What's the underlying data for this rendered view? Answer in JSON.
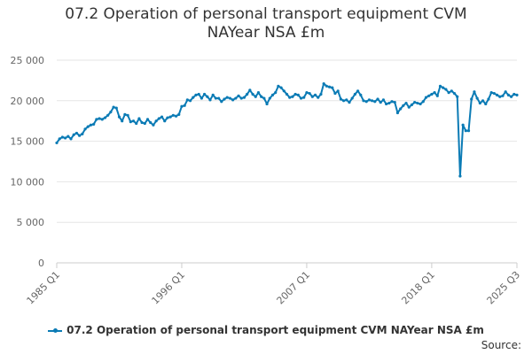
{
  "chart_data": {
    "type": "line",
    "title": "07.2 Operation of personal transport equipment CVM NAYear NSA £m",
    "title_lines": [
      "07.2 Operation of personal transport equipment CVM",
      "NAYear NSA £m"
    ],
    "xlabel": "",
    "ylabel": "",
    "ylim": [
      0,
      25000
    ],
    "y_ticks": [
      0,
      5000,
      10000,
      15000,
      20000,
      25000
    ],
    "y_tick_labels": [
      "0",
      "5 000",
      "10 000",
      "15 000",
      "20 000",
      "25 000"
    ],
    "x_tick_labels": [
      "1985 Q1",
      "1996 Q1",
      "2007 Q1",
      "2018 Q1",
      "2025 Q3"
    ],
    "x_tick_index": [
      0,
      44,
      88,
      132,
      162
    ],
    "grid": true,
    "legend_position": "bottom",
    "series": [
      {
        "name": "07.2 Operation of personal transport equipment CVM NAYear NSA £m",
        "color": "#0b7bb5",
        "anchors": [
          [
            0,
            14800
          ],
          [
            1,
            15300
          ],
          [
            2,
            15500
          ],
          [
            3,
            15400
          ],
          [
            4,
            15600
          ],
          [
            5,
            15300
          ],
          [
            6,
            15800
          ],
          [
            7,
            16000
          ],
          [
            8,
            15700
          ],
          [
            9,
            15900
          ],
          [
            10,
            16500
          ],
          [
            11,
            16800
          ],
          [
            12,
            17000
          ],
          [
            13,
            17100
          ],
          [
            14,
            17700
          ],
          [
            15,
            17800
          ],
          [
            16,
            17700
          ],
          [
            17,
            17900
          ],
          [
            18,
            18200
          ],
          [
            19,
            18600
          ],
          [
            20,
            19200
          ],
          [
            21,
            19100
          ],
          [
            22,
            18000
          ],
          [
            23,
            17500
          ],
          [
            24,
            18300
          ],
          [
            25,
            18200
          ],
          [
            26,
            17400
          ],
          [
            27,
            17500
          ],
          [
            28,
            17200
          ],
          [
            29,
            17800
          ],
          [
            30,
            17300
          ],
          [
            31,
            17200
          ],
          [
            32,
            17700
          ],
          [
            33,
            17300
          ],
          [
            34,
            17000
          ],
          [
            35,
            17500
          ],
          [
            36,
            17800
          ],
          [
            37,
            18000
          ],
          [
            38,
            17500
          ],
          [
            39,
            17900
          ],
          [
            40,
            18000
          ],
          [
            41,
            18200
          ],
          [
            42,
            18100
          ],
          [
            43,
            18300
          ],
          [
            44,
            19300
          ],
          [
            45,
            19400
          ],
          [
            46,
            20100
          ],
          [
            47,
            20000
          ],
          [
            48,
            20400
          ],
          [
            49,
            20700
          ],
          [
            50,
            20800
          ],
          [
            51,
            20300
          ],
          [
            52,
            20800
          ],
          [
            53,
            20500
          ],
          [
            54,
            20100
          ],
          [
            55,
            20700
          ],
          [
            56,
            20300
          ],
          [
            57,
            20300
          ],
          [
            58,
            19900
          ],
          [
            59,
            20200
          ],
          [
            60,
            20400
          ],
          [
            61,
            20300
          ],
          [
            62,
            20100
          ],
          [
            63,
            20300
          ],
          [
            64,
            20600
          ],
          [
            65,
            20300
          ],
          [
            66,
            20400
          ],
          [
            67,
            20800
          ],
          [
            68,
            21300
          ],
          [
            69,
            20800
          ],
          [
            70,
            20500
          ],
          [
            71,
            21000
          ],
          [
            72,
            20500
          ],
          [
            73,
            20300
          ],
          [
            74,
            19600
          ],
          [
            75,
            20300
          ],
          [
            76,
            20700
          ],
          [
            77,
            21000
          ],
          [
            78,
            21800
          ],
          [
            79,
            21600
          ],
          [
            80,
            21200
          ],
          [
            81,
            20800
          ],
          [
            82,
            20400
          ],
          [
            83,
            20500
          ],
          [
            84,
            20800
          ],
          [
            85,
            20700
          ],
          [
            86,
            20300
          ],
          [
            87,
            20400
          ],
          [
            88,
            21000
          ],
          [
            89,
            20900
          ],
          [
            90,
            20500
          ],
          [
            91,
            20700
          ],
          [
            92,
            20400
          ],
          [
            93,
            20800
          ],
          [
            94,
            22100
          ],
          [
            95,
            21800
          ],
          [
            96,
            21700
          ],
          [
            97,
            21600
          ],
          [
            98,
            20900
          ],
          [
            99,
            21200
          ],
          [
            100,
            20200
          ],
          [
            101,
            20000
          ],
          [
            102,
            20100
          ],
          [
            103,
            19800
          ],
          [
            104,
            20300
          ],
          [
            105,
            20800
          ],
          [
            106,
            21200
          ],
          [
            107,
            20700
          ],
          [
            108,
            20000
          ],
          [
            109,
            19900
          ],
          [
            110,
            20100
          ],
          [
            111,
            20000
          ],
          [
            112,
            19900
          ],
          [
            113,
            20200
          ],
          [
            114,
            19800
          ],
          [
            115,
            20100
          ],
          [
            116,
            19600
          ],
          [
            117,
            19700
          ],
          [
            118,
            19900
          ],
          [
            119,
            19800
          ],
          [
            120,
            18500
          ],
          [
            121,
            19000
          ],
          [
            122,
            19400
          ],
          [
            123,
            19700
          ],
          [
            124,
            19200
          ],
          [
            125,
            19500
          ],
          [
            126,
            19800
          ],
          [
            127,
            19700
          ],
          [
            128,
            19600
          ],
          [
            129,
            19900
          ],
          [
            130,
            20400
          ],
          [
            131,
            20600
          ],
          [
            132,
            20800
          ],
          [
            133,
            21000
          ],
          [
            134,
            20600
          ],
          [
            135,
            21800
          ],
          [
            136,
            21600
          ],
          [
            137,
            21400
          ],
          [
            138,
            21000
          ],
          [
            139,
            21200
          ],
          [
            140,
            20900
          ],
          [
            141,
            20500
          ],
          [
            142,
            10700
          ],
          [
            143,
            17000
          ],
          [
            144,
            16300
          ],
          [
            145,
            16300
          ],
          [
            146,
            20200
          ],
          [
            147,
            21100
          ],
          [
            148,
            20300
          ],
          [
            149,
            19700
          ],
          [
            150,
            20000
          ],
          [
            151,
            19600
          ],
          [
            152,
            20200
          ],
          [
            153,
            21000
          ],
          [
            154,
            20900
          ],
          [
            155,
            20700
          ],
          [
            156,
            20500
          ],
          [
            157,
            20600
          ],
          [
            158,
            21100
          ],
          [
            159,
            20700
          ],
          [
            160,
            20500
          ],
          [
            161,
            20800
          ],
          [
            162,
            20700
          ]
        ]
      }
    ]
  },
  "footer": {
    "source_label": "Source:"
  }
}
